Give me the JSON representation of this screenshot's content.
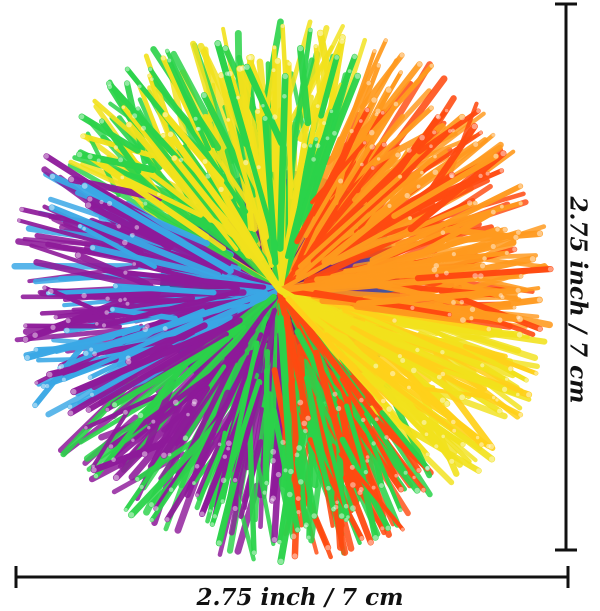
{
  "product_photo": {
    "subject": "Rainbow stringy sensory ball",
    "strand_colors": [
      "#8e1a9a",
      "#3aa8e6",
      "#2bd34a",
      "#f2e21c",
      "#ff9a1e",
      "#ff4a10",
      "#e84a9a",
      "#ffd11a"
    ]
  },
  "dimensions": {
    "width_label": "2.75 inch / 7 cm",
    "height_label": "2.75 inch / 7 cm",
    "line_color": "#111111"
  }
}
